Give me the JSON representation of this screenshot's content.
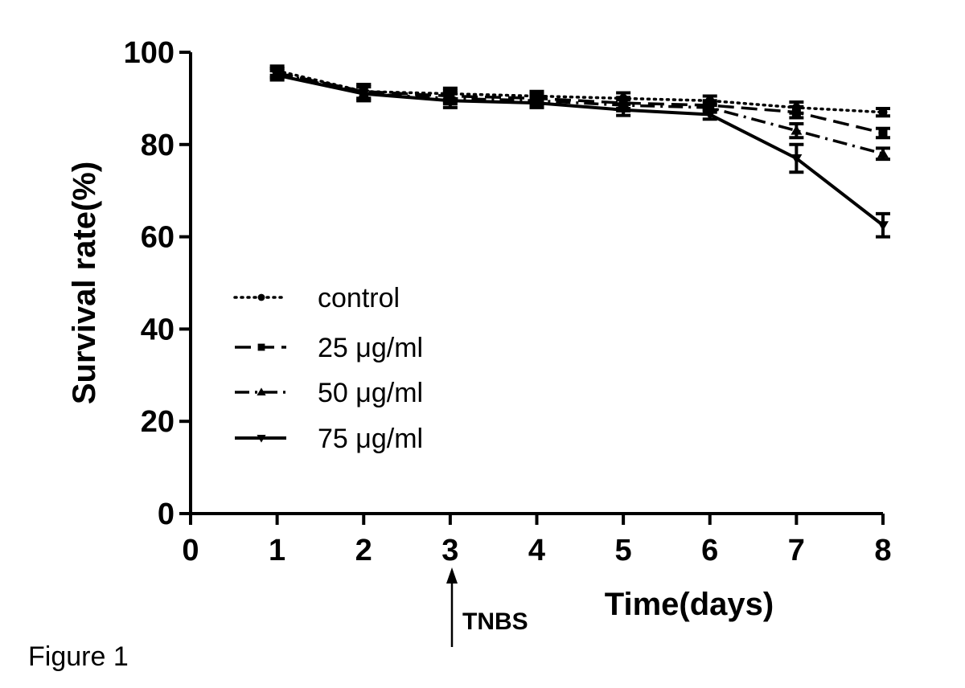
{
  "figure_label": "Figure 1",
  "chart_data": {
    "type": "line",
    "title": "",
    "xlabel": "Time(days)",
    "ylabel": "Survival rate(%)",
    "xlim": [
      0,
      8
    ],
    "ylim": [
      0,
      100
    ],
    "x_ticks": [
      0,
      1,
      2,
      3,
      4,
      5,
      6,
      7,
      8
    ],
    "y_ticks": [
      0,
      20,
      40,
      60,
      80,
      100
    ],
    "grid": false,
    "legend_position": "left-middle",
    "x": [
      1,
      2,
      3,
      4,
      5,
      6,
      7,
      8
    ],
    "series": [
      {
        "name": "control",
        "style": "dotted",
        "marker": "circle",
        "values": [
          96,
          91.5,
          91,
          90.5,
          90,
          89.5,
          88,
          87
        ],
        "errors": [
          1.0,
          1.5,
          1.2,
          1.0,
          1.2,
          1.0,
          1.2,
          0.8
        ]
      },
      {
        "name": "25 μg/ml",
        "style": "dashed",
        "marker": "square",
        "values": [
          95.5,
          91.5,
          90.5,
          90,
          89,
          88.5,
          87,
          82.5
        ],
        "errors": [
          1.0,
          1.5,
          1.2,
          1.0,
          1.2,
          1.0,
          1.2,
          1.0
        ]
      },
      {
        "name": "50 μg/ml",
        "style": "dashdot",
        "marker": "triangle-up",
        "values": [
          95.5,
          91,
          90,
          89.5,
          88.5,
          88,
          83,
          78
        ],
        "errors": [
          1.0,
          1.5,
          1.2,
          1.0,
          1.2,
          1.0,
          1.5,
          1.2
        ]
      },
      {
        "name": "75 μg/ml",
        "style": "solid",
        "marker": "triangle-down",
        "values": [
          95,
          91,
          89.5,
          89,
          87.5,
          86.5,
          77,
          62.5
        ],
        "errors": [
          1.0,
          1.5,
          1.5,
          1.0,
          1.2,
          1.0,
          3.0,
          2.5
        ]
      }
    ],
    "annotations": [
      {
        "text": "TNBS",
        "x": 3,
        "arrow": "up"
      }
    ]
  }
}
